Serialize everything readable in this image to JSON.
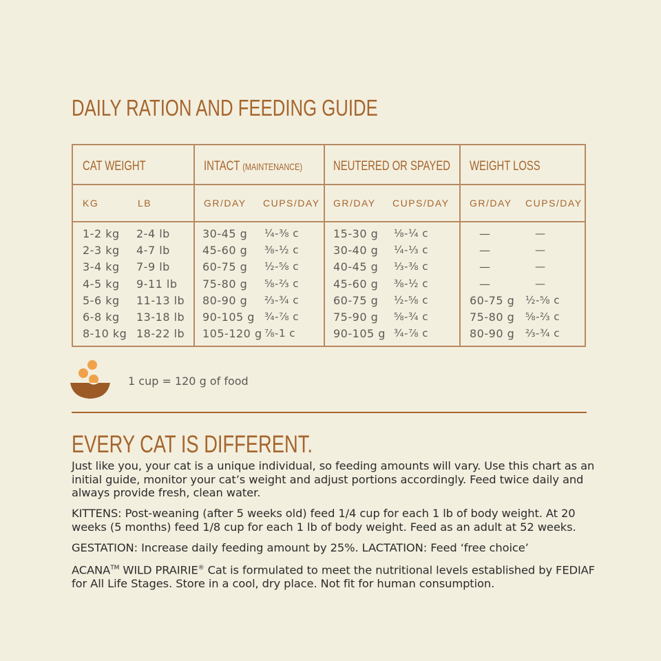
{
  "title": "DAILY RATION AND FEEDING GUIDE",
  "table": {
    "headers": {
      "cat_weight": "CAT WEIGHT",
      "intact": "INTACT",
      "intact_sub": "(MAINTENANCE)",
      "neutered": "NEUTERED OR SPAYED",
      "weight_loss": "WEIGHT LOSS"
    },
    "subheaders": {
      "kg": "KG",
      "lb": "LB",
      "gr": "GR/DAY",
      "cups": "CUPS/DAY"
    },
    "rows": [
      {
        "kg": "1-2 kg",
        "lb": "2-4 lb",
        "i_g": "30-45 g",
        "i_c": "¼-⅜ c",
        "n_g": "15-30 g",
        "n_c": "⅛-¼ c",
        "w_g": "—",
        "w_c": "—"
      },
      {
        "kg": "2-3 kg",
        "lb": "4-7 lb",
        "i_g": "45-60 g",
        "i_c": "⅜-½ c",
        "n_g": "30-40 g",
        "n_c": "¼-⅓ c",
        "w_g": "—",
        "w_c": "—"
      },
      {
        "kg": "3-4 kg",
        "lb": "7-9 lb",
        "i_g": "60-75 g",
        "i_c": "½-⅝ c",
        "n_g": "40-45 g",
        "n_c": "⅓-⅜ c",
        "w_g": "—",
        "w_c": "—"
      },
      {
        "kg": "4-5 kg",
        "lb": "9-11 lb",
        "i_g": "75-80 g",
        "i_c": "⅝-⅔ c",
        "n_g": "45-60 g",
        "n_c": "⅜-½ c",
        "w_g": "—",
        "w_c": "—"
      },
      {
        "kg": "5-6 kg",
        "lb": "11-13 lb",
        "i_g": "80-90 g",
        "i_c": "⅔-¾ c",
        "n_g": "60-75 g",
        "n_c": "½-⅝ c",
        "w_g": "60-75 g",
        "w_c": "½-⅝ c"
      },
      {
        "kg": "6-8 kg",
        "lb": "13-18 lb",
        "i_g": "90-105 g",
        "i_c": "¾-⅞ c",
        "n_g": "75-90 g",
        "n_c": "⅝-¾ c",
        "w_g": "75-80 g",
        "w_c": "⅝-⅔ c"
      },
      {
        "kg": "8-10 kg",
        "lb": "18-22 lb",
        "i_g": "105-120 g",
        "i_c": "⅞-1 c",
        "n_g": "90-105 g",
        "n_c": "¾-⅞ c",
        "w_g": "80-90 g",
        "w_c": "⅔-¾ c"
      }
    ]
  },
  "note": "1 cup = 120 g of food",
  "icon": "food-bowl-icon",
  "colors": {
    "accent": "#a5652c",
    "background": "#f3efdf",
    "bowl": "#9b5a26",
    "kibble": "#f0a24a"
  },
  "section2": {
    "heading": "EVERY CAT IS DIFFERENT.",
    "p1": "Just like you, your cat is a unique individual, so feeding amounts will vary. Use this chart as an initial guide, monitor your cat’s weight and adjust portions accordingly. Feed twice daily and always provide fresh, clean water.",
    "p2": "KITTENS: Post-weaning (after 5 weeks old) feed 1/4 cup for each 1 lb of body weight. At 20 weeks (5 months) feed 1/8 cup for each 1 lb of body weight. Feed as an adult at 52 weeks.",
    "p3": "GESTATION: Increase daily feeding amount by 25%. LACTATION: Feed ‘free choice’",
    "p4_brand": "ACANA",
    "p4_tm": "TM",
    "p4_product": " WILD PRAIRIE",
    "p4_reg": "®",
    "p4_rest": " Cat is formulated to meet the nutritional levels established by FEDIAF for All Life Stages. Store in a cool, dry place. Not fit for human consumption."
  }
}
